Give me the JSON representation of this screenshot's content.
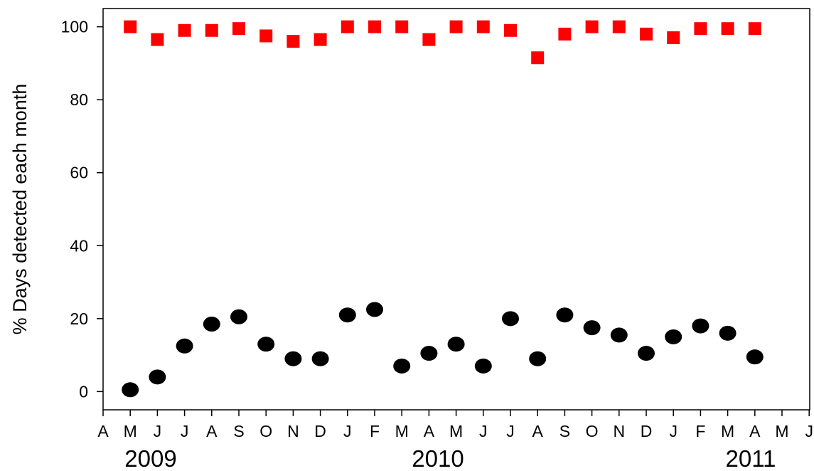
{
  "chart_data": {
    "type": "scatter",
    "title": "",
    "xlabel": "",
    "ylabel": "% Days detected each month",
    "ylim": [
      -5,
      105
    ],
    "yticks": [
      0,
      20,
      40,
      60,
      80,
      100
    ],
    "grid": false,
    "legend": "none",
    "x_months": [
      "A",
      "M",
      "J",
      "J",
      "A",
      "S",
      "O",
      "N",
      "D",
      "J",
      "F",
      "M",
      "A",
      "M",
      "J",
      "J",
      "A",
      "S",
      "O",
      "N",
      "D",
      "J",
      "F",
      "M",
      "A",
      "M",
      "J"
    ],
    "x_years": [
      "2009",
      "2010",
      "2011"
    ],
    "x": [
      "2009-05",
      "2009-06",
      "2009-07",
      "2009-08",
      "2009-09",
      "2009-10",
      "2009-11",
      "2009-12",
      "2010-01",
      "2010-02",
      "2010-03",
      "2010-04",
      "2010-05",
      "2010-06",
      "2010-07",
      "2010-08",
      "2010-09",
      "2010-10",
      "2010-11",
      "2010-12",
      "2011-01",
      "2011-02",
      "2011-03",
      "2011-04"
    ],
    "series": [
      {
        "marker": "square",
        "color": "#ff0000",
        "values": [
          100,
          96.5,
          99,
          99,
          99.5,
          97.5,
          96,
          96.5,
          100,
          100,
          100,
          96.5,
          100,
          100,
          99,
          91.5,
          98,
          100,
          100,
          98,
          97,
          99.5,
          99.5,
          99.5
        ]
      },
      {
        "marker": "circle",
        "color": "#000000",
        "values": [
          0.5,
          4,
          12.5,
          18.5,
          20.5,
          13,
          9,
          9,
          21,
          22.5,
          7,
          10.5,
          13,
          7,
          20,
          9,
          21,
          17.5,
          15.5,
          10.5,
          15,
          18,
          16,
          9.5
        ]
      }
    ]
  }
}
